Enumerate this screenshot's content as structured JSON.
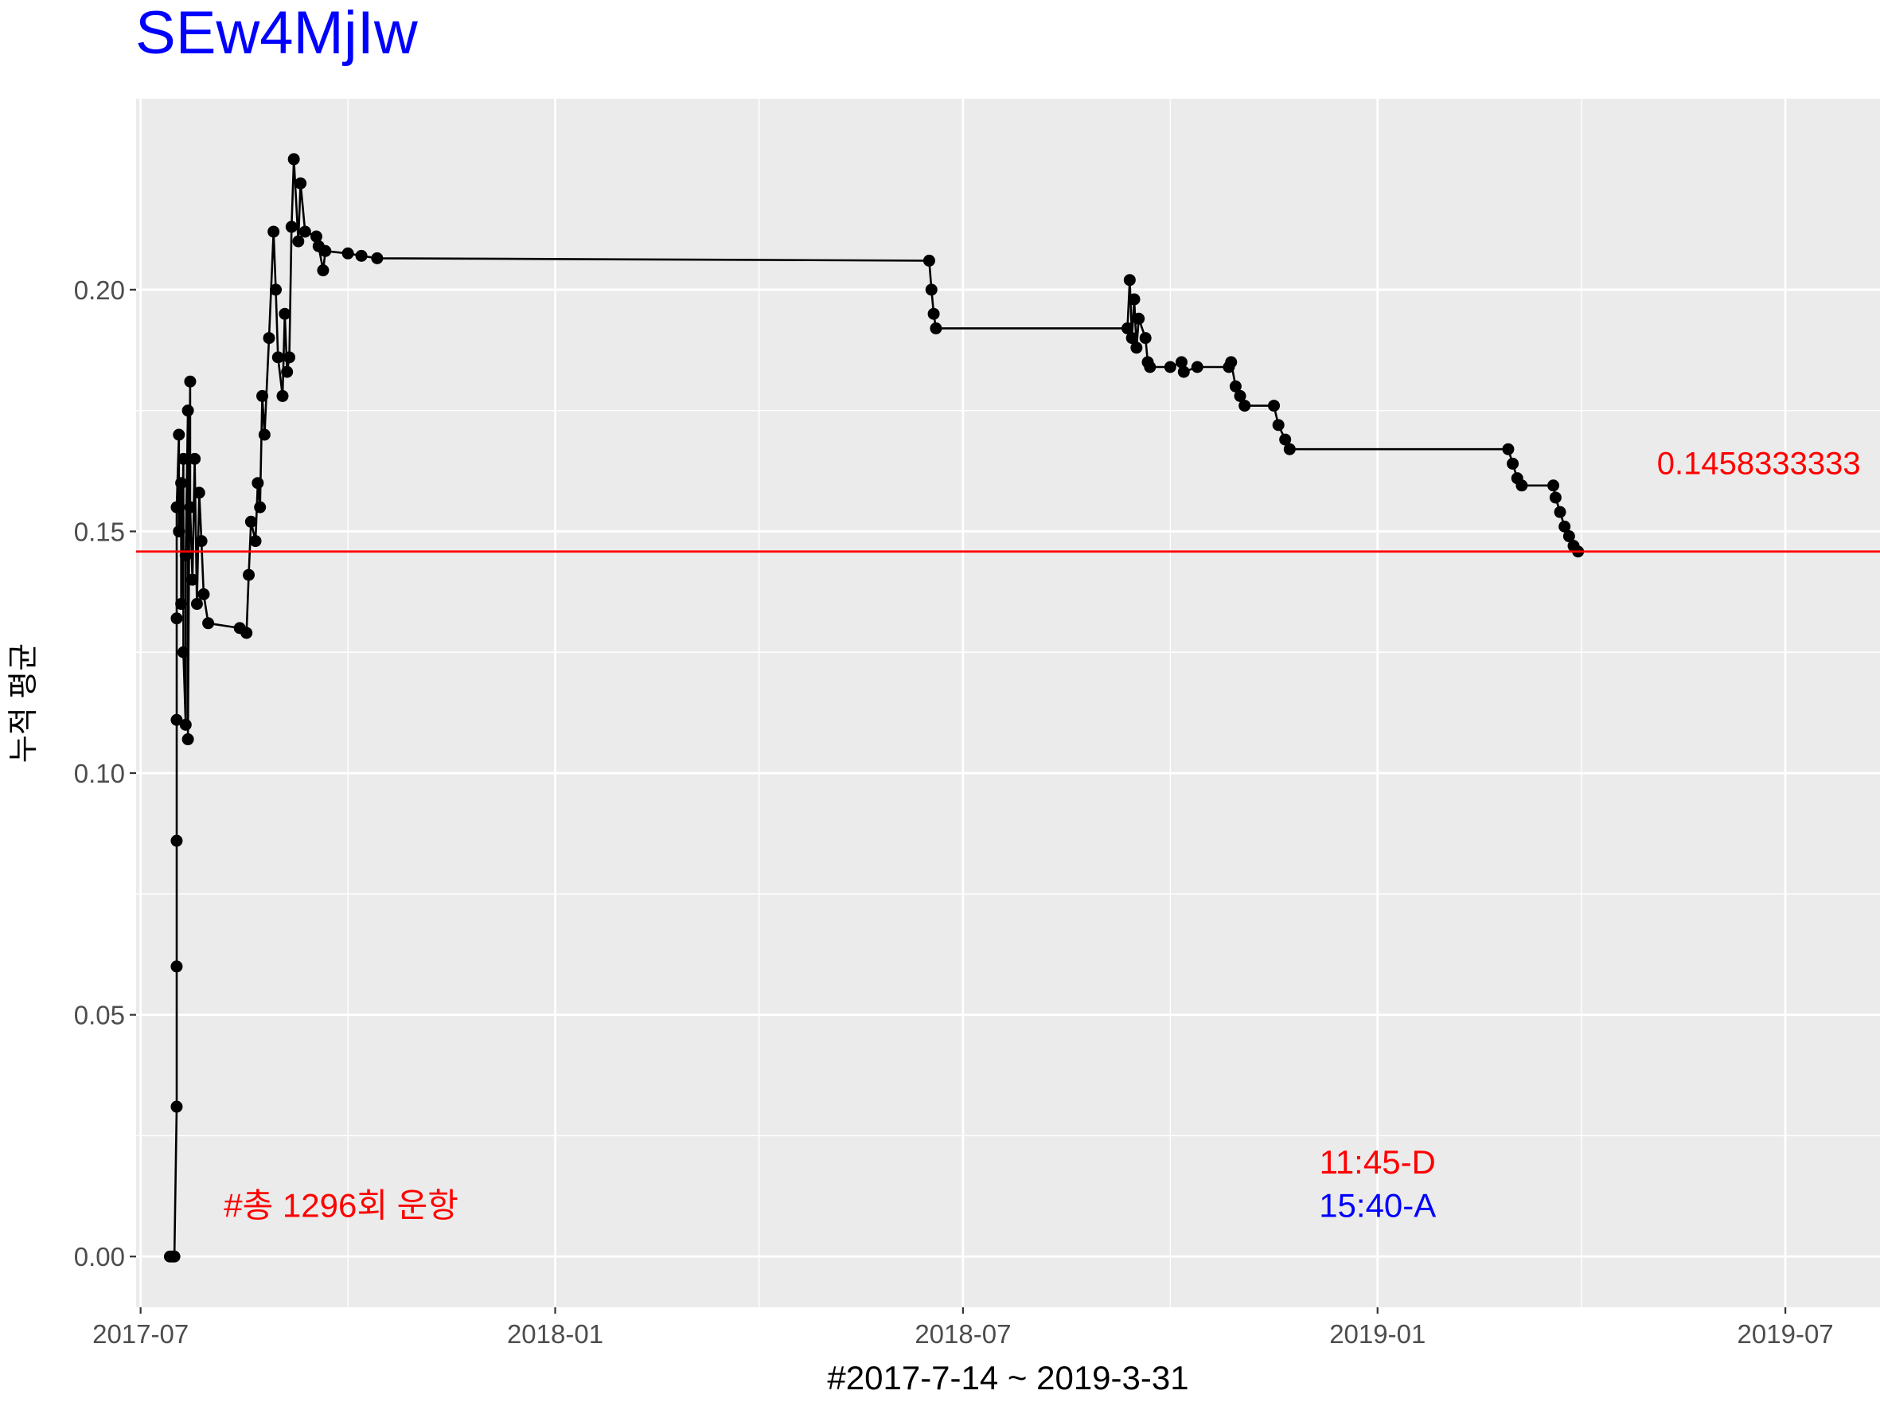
{
  "chart_data": {
    "type": "line",
    "title": "SEw4MjIw",
    "xlabel": "#2017-7-14 ~ 2019-3-31",
    "ylabel": "누적 평균",
    "x_ticks": [
      "2017-07",
      "2018-01",
      "2018-07",
      "2019-01",
      "2019-07"
    ],
    "y_ticks": [
      "0.00",
      "0.05",
      "0.10",
      "0.15",
      "0.20"
    ],
    "xlim": [
      "2017-06-29",
      "2019-08-12"
    ],
    "ylim": [
      -0.0105,
      0.2395
    ],
    "grid": true,
    "reference_line": {
      "value": 0.1458333333,
      "label": "0.1458333333",
      "color": "#ff0000"
    },
    "annotations": [
      {
        "text": "#총 1296회 운항",
        "color": "#ff0000",
        "x": "2017-09-28",
        "y": 0.0105
      },
      {
        "text": "11:45-D",
        "color": "#ff0000",
        "x": "2019-01-01",
        "y": 0.0195
      },
      {
        "text": "15:40-A",
        "color": "#0000ff",
        "x": "2019-01-01",
        "y": 0.0105
      }
    ],
    "series": [
      {
        "color": "#000000",
        "points": [
          [
            "2017-07-14",
            0.0
          ],
          [
            "2017-07-15",
            0.0
          ],
          [
            "2017-07-16",
            0.0
          ],
          [
            "2017-07-17",
            0.031
          ],
          [
            "2017-07-17",
            0.06
          ],
          [
            "2017-07-17",
            0.086
          ],
          [
            "2017-07-17",
            0.111
          ],
          [
            "2017-07-17",
            0.132
          ],
          [
            "2017-07-17",
            0.155
          ],
          [
            "2017-07-18",
            0.17
          ],
          [
            "2017-07-18",
            0.15
          ],
          [
            "2017-07-19",
            0.16
          ],
          [
            "2017-07-19",
            0.135
          ],
          [
            "2017-07-20",
            0.165
          ],
          [
            "2017-07-20",
            0.125
          ],
          [
            "2017-07-21",
            0.11
          ],
          [
            "2017-07-21",
            0.145
          ],
          [
            "2017-07-22",
            0.175
          ],
          [
            "2017-07-22",
            0.107
          ],
          [
            "2017-07-23",
            0.181
          ],
          [
            "2017-07-23",
            0.155
          ],
          [
            "2017-07-24",
            0.14
          ],
          [
            "2017-07-25",
            0.165
          ],
          [
            "2017-07-26",
            0.135
          ],
          [
            "2017-07-27",
            0.158
          ],
          [
            "2017-07-28",
            0.148
          ],
          [
            "2017-07-29",
            0.137
          ],
          [
            "2017-07-31",
            0.131
          ],
          [
            "2017-08-14",
            0.13
          ],
          [
            "2017-08-17",
            0.129
          ],
          [
            "2017-08-18",
            0.141
          ],
          [
            "2017-08-19",
            0.152
          ],
          [
            "2017-08-21",
            0.148
          ],
          [
            "2017-08-22",
            0.16
          ],
          [
            "2017-08-23",
            0.155
          ],
          [
            "2017-08-24",
            0.178
          ],
          [
            "2017-08-25",
            0.17
          ],
          [
            "2017-08-27",
            0.19
          ],
          [
            "2017-08-29",
            0.212
          ],
          [
            "2017-08-30",
            0.2
          ],
          [
            "2017-08-31",
            0.186
          ],
          [
            "2017-09-02",
            0.178
          ],
          [
            "2017-09-03",
            0.195
          ],
          [
            "2017-09-04",
            0.183
          ],
          [
            "2017-09-05",
            0.186
          ],
          [
            "2017-09-06",
            0.213
          ],
          [
            "2017-09-07",
            0.227
          ],
          [
            "2017-09-09",
            0.21
          ],
          [
            "2017-09-10",
            0.222
          ],
          [
            "2017-09-12",
            0.212
          ],
          [
            "2017-09-17",
            0.211
          ],
          [
            "2017-09-18",
            0.209
          ],
          [
            "2017-09-20",
            0.204
          ],
          [
            "2017-09-21",
            0.208
          ],
          [
            "2017-10-01",
            0.2075
          ],
          [
            "2017-10-07",
            0.207
          ],
          [
            "2017-10-14",
            0.2065
          ],
          [
            "2018-06-16",
            0.206
          ],
          [
            "2018-06-17",
            0.2
          ],
          [
            "2018-06-18",
            0.195
          ],
          [
            "2018-06-19",
            0.192
          ],
          [
            "2018-09-12",
            0.192
          ],
          [
            "2018-09-13",
            0.202
          ],
          [
            "2018-09-14",
            0.19
          ],
          [
            "2018-09-15",
            0.198
          ],
          [
            "2018-09-16",
            0.188
          ],
          [
            "2018-09-17",
            0.194
          ],
          [
            "2018-09-20",
            0.19
          ],
          [
            "2018-09-21",
            0.185
          ],
          [
            "2018-09-22",
            0.184
          ],
          [
            "2018-10-01",
            0.184
          ],
          [
            "2018-10-06",
            0.185
          ],
          [
            "2018-10-07",
            0.183
          ],
          [
            "2018-10-13",
            0.184
          ],
          [
            "2018-10-27",
            0.184
          ],
          [
            "2018-10-28",
            0.185
          ],
          [
            "2018-10-30",
            0.18
          ],
          [
            "2018-11-01",
            0.178
          ],
          [
            "2018-11-03",
            0.176
          ],
          [
            "2018-11-16",
            0.176
          ],
          [
            "2018-11-18",
            0.172
          ],
          [
            "2018-11-21",
            0.169
          ],
          [
            "2018-11-23",
            0.167
          ],
          [
            "2019-02-28",
            0.167
          ],
          [
            "2019-03-02",
            0.164
          ],
          [
            "2019-03-04",
            0.161
          ],
          [
            "2019-03-06",
            0.1595
          ],
          [
            "2019-03-20",
            0.1595
          ],
          [
            "2019-03-21",
            0.157
          ],
          [
            "2019-03-23",
            0.154
          ],
          [
            "2019-03-25",
            0.151
          ],
          [
            "2019-03-27",
            0.149
          ],
          [
            "2019-03-29",
            0.147
          ],
          [
            "2019-03-31",
            0.1458333333
          ]
        ]
      }
    ]
  }
}
